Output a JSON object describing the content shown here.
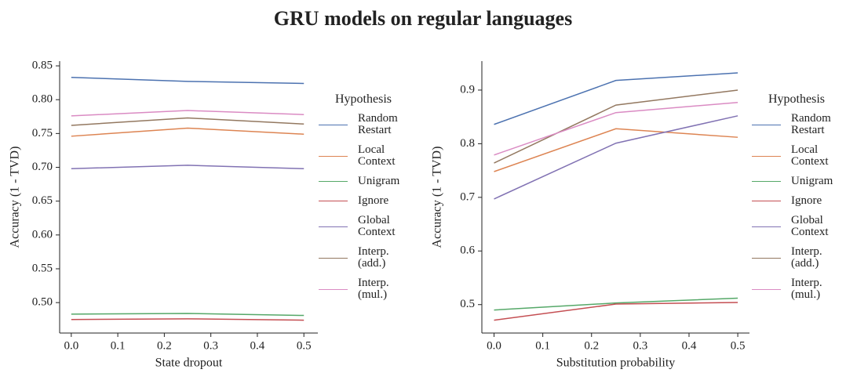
{
  "title": "GRU models on regular languages",
  "chart_data": [
    {
      "type": "line",
      "xlabel": "State dropout",
      "ylabel": "Accuracy (1 - TVD)",
      "legend_title": "Hypothesis",
      "x": [
        0,
        0.25,
        0.5
      ],
      "xlim": [
        -0.025,
        0.53
      ],
      "xticks": [
        {
          "value": 0,
          "label": "0.0"
        },
        0.1,
        0.2,
        0.3,
        0.4,
        0.5
      ],
      "ylim": [
        0.455,
        0.857
      ],
      "yticks": [
        {
          "value": 0.5,
          "label": "0.50"
        },
        0.55,
        {
          "value": 0.6,
          "label": "0.60"
        },
        0.65,
        {
          "value": 0.7,
          "label": "0.70"
        },
        0.75,
        {
          "value": 0.8,
          "label": "0.80"
        },
        0.85
      ],
      "series": [
        {
          "name": "Random Restart",
          "color": "#4c72b0",
          "values": [
            0.833,
            0.827,
            0.824
          ]
        },
        {
          "name": "Local Context",
          "color": "#dd8452",
          "values": [
            0.746,
            0.758,
            0.749
          ]
        },
        {
          "name": "Unigram",
          "color": "#55a868",
          "values": [
            0.483,
            0.484,
            0.481
          ]
        },
        {
          "name": "Ignore",
          "color": "#c44e52",
          "values": [
            0.475,
            0.476,
            0.474
          ]
        },
        {
          "name": "Global Context",
          "color": "#8172b3",
          "values": [
            0.698,
            0.703,
            0.698
          ]
        },
        {
          "name": "Interp. (add.)",
          "color": "#937860",
          "values": [
            0.762,
            0.773,
            0.764
          ]
        },
        {
          "name": "Interp. (mul.)",
          "color": "#da8bc3",
          "values": [
            0.776,
            0.784,
            0.778
          ]
        }
      ]
    },
    {
      "type": "line",
      "xlabel": "Substitution probability",
      "ylabel": "Accuracy (1 - TVD)",
      "legend_title": "Hypothesis",
      "x": [
        0,
        0.25,
        0.5
      ],
      "xlim": [
        -0.025,
        0.524
      ],
      "xticks": [
        {
          "value": 0,
          "label": "0.0"
        },
        0.1,
        0.2,
        0.3,
        0.4,
        0.5
      ],
      "ylim": [
        0.447,
        0.954
      ],
      "yticks": [
        0.5,
        0.6,
        0.7,
        0.8,
        0.9
      ],
      "series": [
        {
          "name": "Random Restart",
          "color": "#4c72b0",
          "values": [
            0.836,
            0.918,
            0.932
          ]
        },
        {
          "name": "Local Context",
          "color": "#dd8452",
          "values": [
            0.748,
            0.828,
            0.812
          ]
        },
        {
          "name": "Unigram",
          "color": "#55a868",
          "values": [
            0.49,
            0.503,
            0.512
          ]
        },
        {
          "name": "Ignore",
          "color": "#c44e52",
          "values": [
            0.471,
            0.501,
            0.504
          ]
        },
        {
          "name": "Global Context",
          "color": "#8172b3",
          "values": [
            0.697,
            0.801,
            0.852
          ]
        },
        {
          "name": "Interp. (add.)",
          "color": "#937860",
          "values": [
            0.764,
            0.872,
            0.9
          ]
        },
        {
          "name": "Interp. (mul.)",
          "color": "#da8bc3",
          "values": [
            0.779,
            0.858,
            0.877
          ]
        }
      ]
    }
  ]
}
